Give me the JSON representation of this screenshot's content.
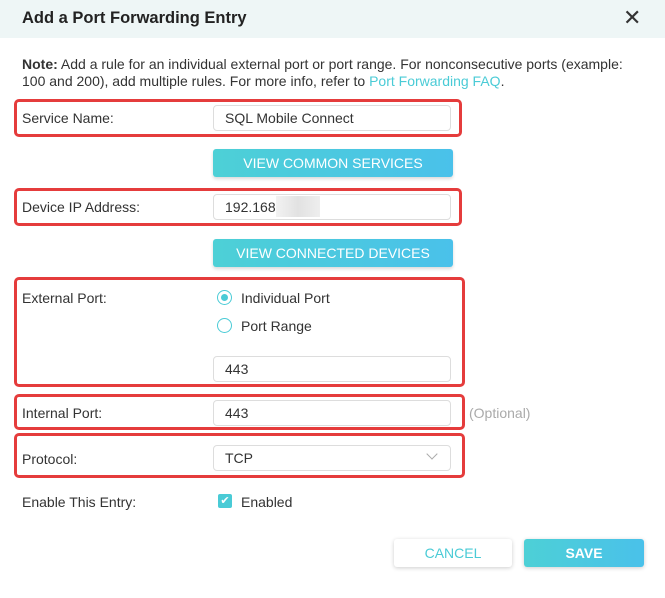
{
  "dialog": {
    "title": "Add a Port Forwarding Entry",
    "close_icon": "close-icon"
  },
  "note": {
    "bold": "Note:",
    "text": " Add a rule for an individual external port or port range. For nonconsecutive ports (example: 100 and 200), add multiple rules. For more info, refer to ",
    "link": "Port Forwarding FAQ",
    "end": "."
  },
  "service": {
    "label": "Service Name:",
    "value": "SQL Mobile Connect",
    "button": "VIEW COMMON SERVICES"
  },
  "device": {
    "label": "Device IP Address:",
    "value": "192.168",
    "button": "VIEW CONNECTED DEVICES"
  },
  "external": {
    "label": "External Port:",
    "options": [
      "Individual Port",
      "Port Range"
    ],
    "selected": "Individual Port",
    "value": "443"
  },
  "internal": {
    "label": "Internal Port:",
    "value": "443",
    "hint": "(Optional)"
  },
  "protocol": {
    "label": "Protocol:",
    "value": "TCP"
  },
  "enable": {
    "label": "Enable This Entry:",
    "checkbox_label": "Enabled",
    "checked": true
  },
  "actions": {
    "cancel": "CANCEL",
    "save": "SAVE"
  },
  "colors": {
    "accent": "#4acbd6",
    "highlight": "#e53c3c"
  }
}
